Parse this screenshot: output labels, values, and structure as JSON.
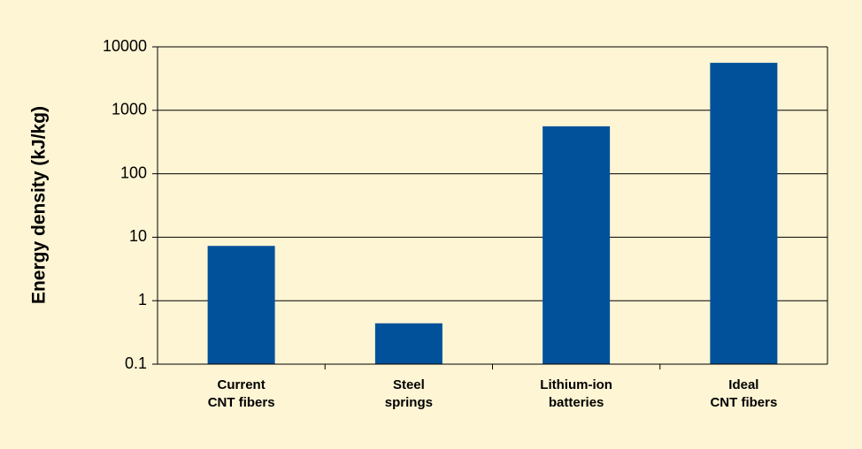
{
  "chart_data": {
    "type": "bar",
    "y_label": "Energy density (kJ/kg)",
    "categories": [
      [
        "Current",
        "CNT fibers"
      ],
      [
        "Steel",
        "springs"
      ],
      [
        "Lithium-ion",
        "batteries"
      ],
      [
        "Ideal",
        "CNT fibers"
      ]
    ],
    "values": [
      7.3,
      0.44,
      560,
      5600
    ],
    "color": "#00519a",
    "log_scale": true,
    "ylim": [
      0.1,
      10000
    ],
    "yticks": [
      0.1,
      1,
      10,
      100,
      1000,
      10000
    ],
    "grid": true
  }
}
